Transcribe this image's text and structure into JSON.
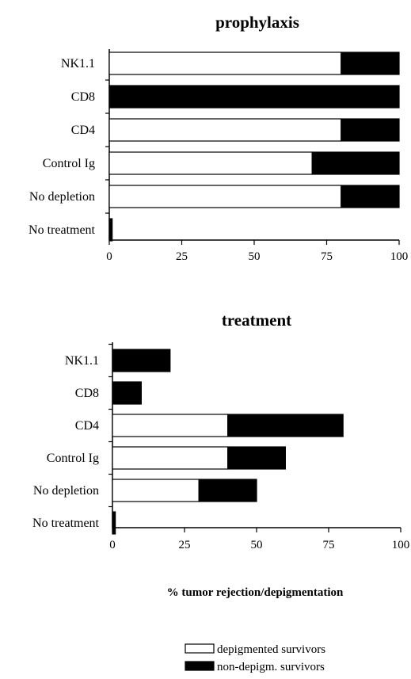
{
  "chart_data": [
    {
      "type": "bar",
      "orientation": "horizontal",
      "stacked": true,
      "title": "prophylaxis",
      "xlabel": "",
      "ylabel": "",
      "xlim": [
        0,
        100
      ],
      "xticks": [
        "0",
        "25",
        "50",
        "75",
        "100"
      ],
      "categories": [
        "NK1.1",
        "CD8",
        "CD4",
        "Control Ig",
        "No depletion",
        "No treatment"
      ],
      "series": [
        {
          "name": "depigmented survivors",
          "color": "#ffffff",
          "values": [
            80,
            0,
            80,
            70,
            80,
            0
          ]
        },
        {
          "name": "non-depigm. survivors",
          "color": "#000000",
          "values": [
            20,
            100,
            20,
            30,
            20,
            1
          ]
        }
      ]
    },
    {
      "type": "bar",
      "orientation": "horizontal",
      "stacked": true,
      "title": "treatment",
      "xlabel": "% tumor rejection/depigmentation",
      "ylabel": "",
      "xlim": [
        0,
        100
      ],
      "xticks": [
        "0",
        "25",
        "50",
        "75",
        "100"
      ],
      "categories": [
        "NK1.1",
        "CD8",
        "CD4",
        "Control Ig",
        "No depletion",
        "No treatment"
      ],
      "series": [
        {
          "name": "depigmented survivors",
          "color": "#ffffff",
          "values": [
            0,
            0,
            40,
            40,
            30,
            0
          ]
        },
        {
          "name": "non-depigm. survivors",
          "color": "#000000",
          "values": [
            20,
            10,
            40,
            20,
            20,
            1
          ]
        }
      ]
    }
  ],
  "legend": {
    "placement": "bottom-right",
    "items": [
      {
        "label": "depigmented survivors",
        "color": "#ffffff"
      },
      {
        "label": "non-depigm. survivors",
        "color": "#000000"
      }
    ]
  }
}
